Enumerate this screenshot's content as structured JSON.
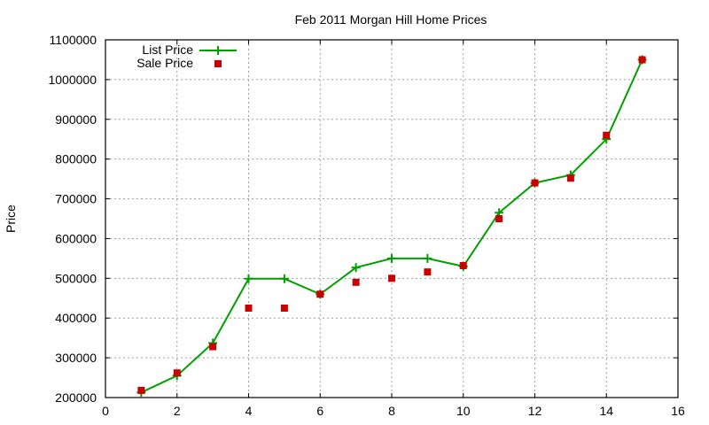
{
  "chart_data": {
    "type": "line",
    "title": "Feb 2011 Morgan Hill Home Prices",
    "xlabel": "",
    "ylabel": "Price",
    "xlim": [
      0,
      16
    ],
    "ylim": [
      200000,
      1100000
    ],
    "xticks": [
      0,
      2,
      4,
      6,
      8,
      10,
      12,
      14,
      16
    ],
    "yticks": [
      200000,
      300000,
      400000,
      500000,
      600000,
      700000,
      800000,
      900000,
      1000000,
      1100000
    ],
    "grid": true,
    "legend_position": "top-left",
    "x": [
      1,
      2,
      3,
      4,
      5,
      6,
      7,
      8,
      9,
      10,
      11,
      12,
      13,
      14,
      15
    ],
    "series": [
      {
        "name": "List Price",
        "style": "linespoints",
        "marker": "plus",
        "color": "#00a000",
        "values": [
          213000,
          255000,
          337000,
          499000,
          499000,
          460000,
          527000,
          550000,
          550000,
          530000,
          665000,
          740000,
          760000,
          850000,
          1050000
        ]
      },
      {
        "name": "Sale Price",
        "style": "points",
        "marker": "square",
        "color": "#cc0000",
        "values": [
          218000,
          262000,
          328000,
          425000,
          425000,
          460000,
          490000,
          500000,
          516000,
          532000,
          650000,
          740000,
          752000,
          860000,
          1050000
        ]
      }
    ]
  }
}
